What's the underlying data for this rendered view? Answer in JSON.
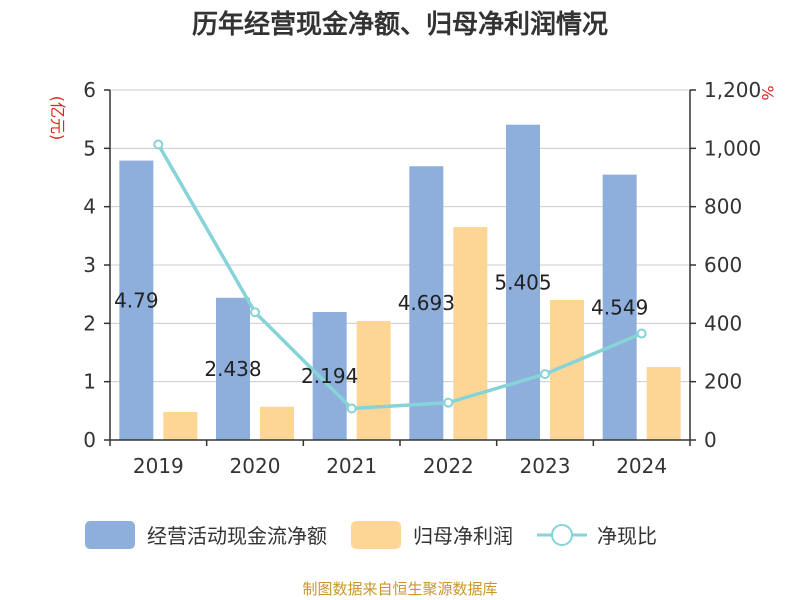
{
  "chart_data": {
    "type": "bar",
    "title": "历年经营现金净额、归母净利润情况",
    "categories": [
      "2019",
      "2020",
      "2021",
      "2022",
      "2023",
      "2024"
    ],
    "left_axis": {
      "unit": "(亿元)",
      "ylim": [
        0,
        6
      ],
      "ticks": [
        "0",
        "1",
        "2",
        "3",
        "4",
        "5",
        "6"
      ]
    },
    "right_axis": {
      "unit": "%",
      "ylim": [
        0,
        1200
      ],
      "ticks": [
        "0",
        "200",
        "400",
        "600",
        "800",
        "1,000",
        "1,200"
      ]
    },
    "series": [
      {
        "name": "经营活动现金流净额",
        "type": "bar",
        "axis": "left",
        "color": "#8eaedb",
        "values": [
          4.79,
          2.438,
          2.194,
          4.693,
          5.405,
          4.549
        ],
        "labels": [
          "4.79",
          "2.438",
          "2.194",
          "4.693",
          "5.405",
          "4.549"
        ]
      },
      {
        "name": "归母净利润",
        "type": "bar",
        "axis": "left",
        "color": "#fdd696",
        "values": [
          0.48,
          0.57,
          2.04,
          3.65,
          2.4,
          1.25
        ]
      },
      {
        "name": "净现比",
        "type": "line",
        "axis": "right",
        "color": "#86d3d8",
        "values": [
          1013,
          438,
          108,
          128,
          226,
          365
        ]
      }
    ],
    "grid": true,
    "legend_position": "bottom",
    "source": "制图数据来自恒生聚源数据库"
  }
}
